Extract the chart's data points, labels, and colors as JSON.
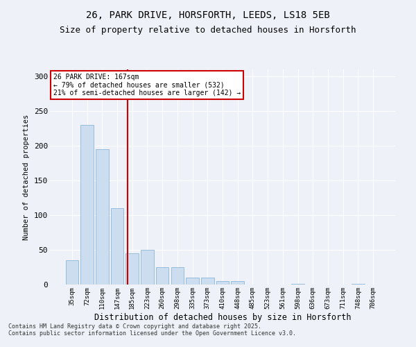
{
  "title_line1": "26, PARK DRIVE, HORSFORTH, LEEDS, LS18 5EB",
  "title_line2": "Size of property relative to detached houses in Horsforth",
  "xlabel": "Distribution of detached houses by size in Horsforth",
  "ylabel": "Number of detached properties",
  "categories": [
    "35sqm",
    "72sqm",
    "110sqm",
    "147sqm",
    "185sqm",
    "223sqm",
    "260sqm",
    "298sqm",
    "335sqm",
    "373sqm",
    "410sqm",
    "448sqm",
    "485sqm",
    "523sqm",
    "561sqm",
    "598sqm",
    "636sqm",
    "673sqm",
    "711sqm",
    "748sqm",
    "786sqm"
  ],
  "values": [
    35,
    230,
    195,
    110,
    45,
    50,
    25,
    25,
    10,
    10,
    5,
    5,
    0,
    0,
    0,
    1,
    0,
    0,
    0,
    1,
    0
  ],
  "bar_color": "#ccddf0",
  "bar_edge_color": "#7aadd4",
  "vline_color": "#cc0000",
  "annotation_text": "26 PARK DRIVE: 167sqm\n← 79% of detached houses are smaller (532)\n21% of semi-detached houses are larger (142) →",
  "annotation_box_color": "#ffffff",
  "annotation_box_edge": "#cc0000",
  "footer_line1": "Contains HM Land Registry data © Crown copyright and database right 2025.",
  "footer_line2": "Contains public sector information licensed under the Open Government Licence v3.0.",
  "ylim": [
    0,
    310
  ],
  "background_color": "#eef2f8",
  "grid_color": "#ffffff",
  "title_fontsize": 10,
  "subtitle_fontsize": 9,
  "yticks": [
    0,
    50,
    100,
    150,
    200,
    250,
    300
  ]
}
